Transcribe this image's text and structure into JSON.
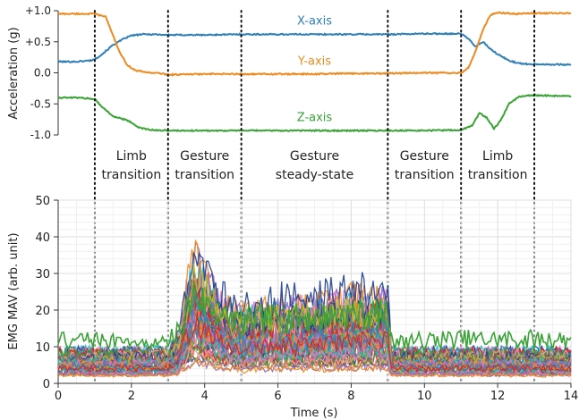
{
  "chart_data": [
    {
      "type": "line",
      "title": "",
      "xlabel": "",
      "ylabel": "Acceleration (g)",
      "xlim": [
        0,
        14
      ],
      "ylim": [
        -1.0,
        1.0
      ],
      "y_ticks": [
        1.0,
        0.5,
        0.0,
        -0.5,
        -1.0
      ],
      "y_tick_labels": [
        "+1.0",
        "+0.5",
        "0.0",
        "-0.5",
        "-1.0"
      ],
      "grid": false,
      "series": [
        {
          "name": "X-axis",
          "color": "#2f7fb8",
          "x": [
            0,
            0.5,
            0.9,
            1.0,
            1.2,
            1.5,
            1.8,
            2.0,
            2.3,
            2.6,
            3.0,
            4.0,
            5.0,
            6.0,
            7.0,
            8.0,
            9.0,
            10.0,
            11.0,
            11.2,
            11.4,
            11.6,
            11.8,
            12.0,
            12.3,
            12.6,
            13.0,
            14.0
          ],
          "values": [
            0.18,
            0.18,
            0.2,
            0.22,
            0.3,
            0.45,
            0.55,
            0.6,
            0.62,
            0.62,
            0.61,
            0.61,
            0.62,
            0.62,
            0.62,
            0.62,
            0.62,
            0.63,
            0.63,
            0.55,
            0.42,
            0.5,
            0.38,
            0.3,
            0.2,
            0.15,
            0.14,
            0.13
          ]
        },
        {
          "name": "Y-axis",
          "color": "#ef8a1f",
          "x": [
            0,
            0.5,
            1.0,
            1.3,
            1.5,
            1.7,
            1.9,
            2.1,
            2.4,
            2.8,
            3.0,
            4.0,
            5.0,
            6.0,
            7.0,
            8.0,
            9.0,
            10.0,
            11.0,
            11.2,
            11.4,
            11.6,
            11.8,
            12.0,
            12.5,
            13.0,
            14.0
          ],
          "values": [
            0.95,
            0.95,
            0.95,
            0.9,
            0.6,
            0.3,
            0.12,
            0.04,
            0.01,
            -0.01,
            -0.03,
            -0.02,
            -0.02,
            -0.02,
            -0.02,
            -0.01,
            -0.01,
            0.0,
            0.0,
            0.08,
            0.35,
            0.7,
            0.93,
            0.97,
            0.95,
            0.96,
            0.96
          ]
        },
        {
          "name": "Z-axis",
          "color": "#3aa336",
          "x": [
            0,
            0.5,
            1.0,
            1.2,
            1.5,
            1.8,
            2.0,
            2.2,
            2.5,
            3.0,
            4.0,
            5.0,
            6.0,
            7.0,
            8.0,
            9.0,
            10.0,
            11.0,
            11.3,
            11.5,
            11.7,
            11.9,
            12.1,
            12.3,
            12.6,
            13.0,
            14.0
          ],
          "values": [
            -0.4,
            -0.4,
            -0.42,
            -0.55,
            -0.7,
            -0.75,
            -0.8,
            -0.88,
            -0.92,
            -0.93,
            -0.93,
            -0.93,
            -0.93,
            -0.93,
            -0.93,
            -0.93,
            -0.93,
            -0.92,
            -0.85,
            -0.65,
            -0.72,
            -0.9,
            -0.75,
            -0.5,
            -0.38,
            -0.36,
            -0.38
          ]
        }
      ]
    },
    {
      "type": "line",
      "title": "",
      "xlabel": "Time (s)",
      "ylabel": "EMG MAV (arb. unit)",
      "xlim": [
        0,
        14
      ],
      "ylim": [
        0,
        50
      ],
      "x_ticks": [
        0,
        2,
        4,
        6,
        8,
        10,
        12,
        14
      ],
      "y_ticks": [
        0,
        10,
        20,
        30,
        40,
        50
      ],
      "grid": true,
      "legend": "none",
      "channel_count": 64,
      "series_note": "64 unnamed EMG channels; baseline level per channel ≈ 2–9 at rest, rising roughly 3–6× during gesture transition (3.3–4.2 s), ~2–3.5× during gesture steady-state (5–9 s), returning to baseline after 9.1 s; one top channel ≈ 11–16 throughout",
      "series_envelope": {
        "x": [
          0,
          1,
          2,
          3,
          3.3,
          3.5,
          3.7,
          4.0,
          4.5,
          5.0,
          6.0,
          7.0,
          8.0,
          9.0,
          9.1,
          10,
          11,
          12,
          13,
          14
        ],
        "median": [
          6,
          6,
          6,
          6,
          8,
          14,
          18,
          16,
          12,
          11,
          12,
          12,
          13,
          13,
          6,
          6,
          6,
          6,
          6,
          6
        ],
        "max": [
          14,
          14,
          13,
          13,
          25,
          44,
          42,
          35,
          30,
          28,
          28,
          30,
          32,
          34,
          14,
          14,
          15,
          15,
          15,
          14
        ],
        "min": [
          2,
          2,
          2,
          2,
          3,
          5,
          5,
          5,
          4,
          4,
          4,
          4,
          4,
          4,
          2,
          2,
          2,
          2,
          2,
          2
        ]
      }
    }
  ],
  "markers": {
    "times": [
      1,
      3,
      5,
      9,
      11,
      13
    ],
    "style": "dotted"
  },
  "phase_labels": [
    {
      "lines": [
        "Limb",
        "transition"
      ],
      "x": 2.0
    },
    {
      "lines": [
        "Gesture",
        "transition"
      ],
      "x": 4.0
    },
    {
      "lines": [
        "Gesture",
        "steady-state"
      ],
      "x": 7.0
    },
    {
      "lines": [
        "Gesture",
        "transition"
      ],
      "x": 10.0
    },
    {
      "lines": [
        "Limb",
        "transition"
      ],
      "x": 12.0
    }
  ],
  "colors": {
    "emg_palette": [
      "#3aa336",
      "#d62728",
      "#2f7fb8",
      "#ef8a1f",
      "#9467bd",
      "#e377c2",
      "#17becf",
      "#8c564b",
      "#bcbd22",
      "#7f7f7f",
      "#1f3f8f",
      "#ff9896"
    ]
  }
}
